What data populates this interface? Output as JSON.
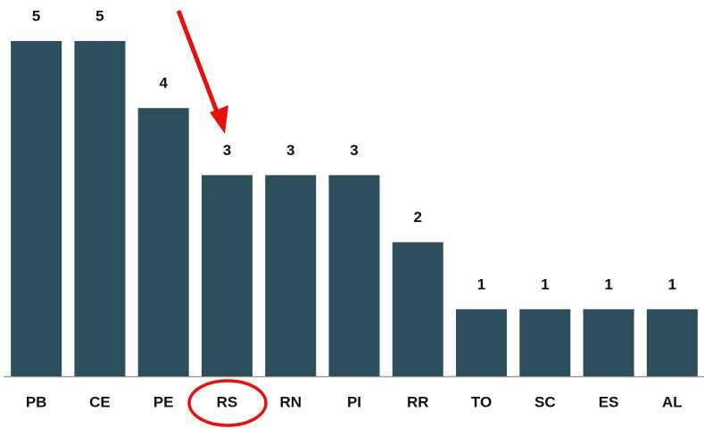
{
  "chart_data": {
    "type": "bar",
    "categories": [
      "PB",
      "CE",
      "PE",
      "RS",
      "RN",
      "PI",
      "RR",
      "TO",
      "SC",
      "ES",
      "AL"
    ],
    "values": [
      5,
      5,
      4,
      3,
      3,
      3,
      2,
      1,
      1,
      1,
      1
    ],
    "color": "#2c4f5b",
    "ylim": [
      0,
      5
    ]
  }
}
